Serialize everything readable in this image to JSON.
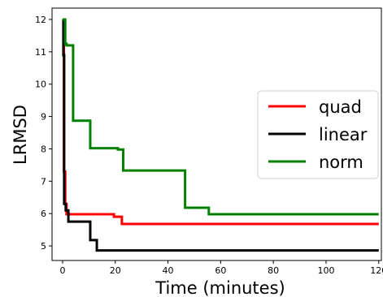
{
  "chart_data": {
    "type": "line",
    "title": "",
    "xlabel": "Time (minutes)",
    "ylabel": "LRMSD",
    "xlim": [
      -4,
      121
    ],
    "ylim": [
      4.55,
      12.35
    ],
    "x_ticks": [
      0,
      20,
      40,
      60,
      80,
      100,
      120
    ],
    "y_ticks": [
      5,
      6,
      7,
      8,
      9,
      10,
      11,
      12
    ],
    "grid": false,
    "legend_position": "right",
    "series": [
      {
        "name": "quad",
        "color": "#ff0000",
        "step": true,
        "x": [
          0,
          0.5,
          1,
          1.5,
          19.5,
          22.5,
          120
        ],
        "y": [
          12.0,
          7.3,
          6.3,
          5.98,
          5.9,
          5.68,
          5.68
        ]
      },
      {
        "name": "linear",
        "color": "#000000",
        "step": true,
        "x": [
          0,
          0.3,
          0.6,
          1.2,
          2.2,
          10.5,
          13,
          120
        ],
        "y": [
          12.0,
          10.9,
          6.3,
          6.1,
          5.75,
          5.18,
          4.86,
          4.86
        ]
      },
      {
        "name": "norm",
        "color": "#008000",
        "step": true,
        "x": [
          0,
          1,
          1.5,
          4,
          10.5,
          21,
          23,
          46.5,
          55.5,
          120
        ],
        "y": [
          12.0,
          11.25,
          11.2,
          8.87,
          8.02,
          7.98,
          7.33,
          6.18,
          5.98,
          5.98
        ]
      }
    ]
  }
}
